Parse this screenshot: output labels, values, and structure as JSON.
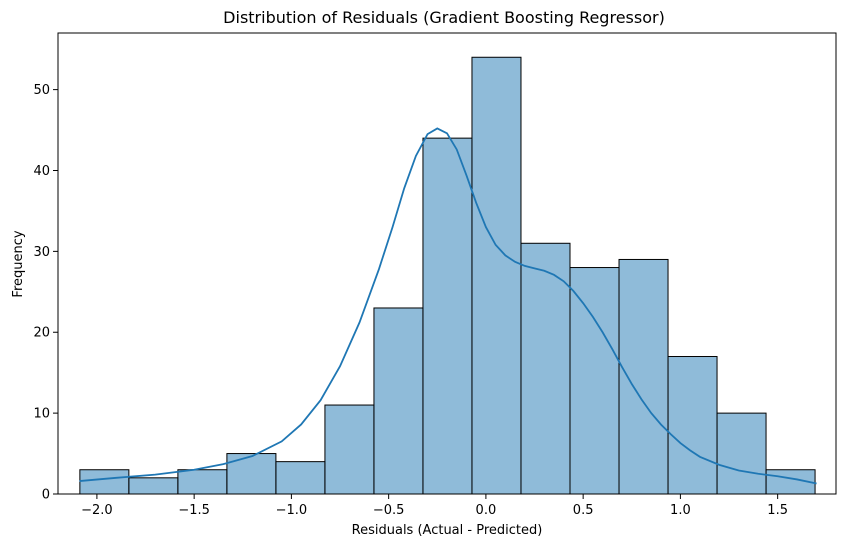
{
  "chart_data": {
    "type": "bar",
    "title": "Distribution of Residuals (Gradient Boosting Regressor)",
    "xlabel": "Residuals (Actual - Predicted)",
    "ylabel": "Frequency",
    "xlim": [
      -2.2,
      1.8
    ],
    "ylim": [
      0,
      57
    ],
    "xticks": [
      -2.0,
      -1.5,
      -1.0,
      -0.5,
      0.0,
      0.5,
      1.0,
      1.5
    ],
    "xtick_labels": [
      "−2.0",
      "−1.5",
      "−1.0",
      "−0.5",
      "0.0",
      "0.5",
      "1.0",
      "1.5"
    ],
    "yticks": [
      0,
      10,
      20,
      30,
      40,
      50
    ],
    "ytick_labels": [
      "0",
      "10",
      "20",
      "30",
      "40",
      "50"
    ],
    "bin_edges": [
      -2.09,
      -1.84,
      -1.59,
      -1.34,
      -1.09,
      -0.84,
      -0.59,
      -0.34,
      -0.09,
      0.16,
      0.41,
      0.66,
      0.91,
      1.16,
      1.41,
      1.66
    ],
    "bins": [
      {
        "x0": -2.0876,
        "x1": -1.8356,
        "count": 3
      },
      {
        "x0": -1.8356,
        "x1": -1.5836,
        "count": 2
      },
      {
        "x0": -1.5836,
        "x1": -1.3316,
        "count": 3
      },
      {
        "x0": -1.3316,
        "x1": -1.0796,
        "count": 5
      },
      {
        "x0": -1.0796,
        "x1": -0.8276,
        "count": 4
      },
      {
        "x0": -0.8276,
        "x1": -0.5756,
        "count": 11
      },
      {
        "x0": -0.5756,
        "x1": -0.3236,
        "count": 23
      },
      {
        "x0": -0.3236,
        "x1": -0.0716,
        "count": 44
      },
      {
        "x0": -0.0716,
        "x1": 0.1804,
        "count": 54
      },
      {
        "x0": 0.1804,
        "x1": 0.4324,
        "count": 31
      },
      {
        "x0": 0.4324,
        "x1": 0.6844,
        "count": 28
      },
      {
        "x0": 0.6844,
        "x1": 0.9364,
        "count": 29
      },
      {
        "x0": 0.9364,
        "x1": 1.1884,
        "count": 17
      },
      {
        "x0": 1.1884,
        "x1": 1.4404,
        "count": 10
      },
      {
        "x0": 1.4404,
        "x1": 1.6924,
        "count": 3
      }
    ],
    "kde": [
      [
        -2.09,
        1.6
      ],
      [
        -1.9,
        2.0
      ],
      [
        -1.7,
        2.4
      ],
      [
        -1.5,
        3.0
      ],
      [
        -1.35,
        3.7
      ],
      [
        -1.2,
        4.7
      ],
      [
        -1.05,
        6.5
      ],
      [
        -0.95,
        8.6
      ],
      [
        -0.85,
        11.6
      ],
      [
        -0.75,
        15.8
      ],
      [
        -0.65,
        21.2
      ],
      [
        -0.55,
        27.8
      ],
      [
        -0.48,
        33.0
      ],
      [
        -0.42,
        37.8
      ],
      [
        -0.36,
        41.8
      ],
      [
        -0.3,
        44.5
      ],
      [
        -0.25,
        45.2
      ],
      [
        -0.2,
        44.6
      ],
      [
        -0.15,
        42.6
      ],
      [
        -0.1,
        39.4
      ],
      [
        -0.05,
        36.0
      ],
      [
        0.0,
        33.0
      ],
      [
        0.05,
        30.8
      ],
      [
        0.1,
        29.5
      ],
      [
        0.15,
        28.7
      ],
      [
        0.2,
        28.2
      ],
      [
        0.25,
        27.9
      ],
      [
        0.3,
        27.6
      ],
      [
        0.35,
        27.1
      ],
      [
        0.4,
        26.3
      ],
      [
        0.45,
        25.1
      ],
      [
        0.5,
        23.6
      ],
      [
        0.55,
        21.9
      ],
      [
        0.6,
        20.0
      ],
      [
        0.65,
        17.9
      ],
      [
        0.7,
        15.7
      ],
      [
        0.75,
        13.6
      ],
      [
        0.8,
        11.7
      ],
      [
        0.85,
        10.0
      ],
      [
        0.9,
        8.6
      ],
      [
        0.95,
        7.4
      ],
      [
        1.0,
        6.3
      ],
      [
        1.05,
        5.4
      ],
      [
        1.1,
        4.6
      ],
      [
        1.2,
        3.6
      ],
      [
        1.3,
        2.9
      ],
      [
        1.4,
        2.5
      ],
      [
        1.5,
        2.2
      ],
      [
        1.6,
        1.8
      ],
      [
        1.7,
        1.3
      ]
    ],
    "grid": false,
    "legend": "none"
  }
}
